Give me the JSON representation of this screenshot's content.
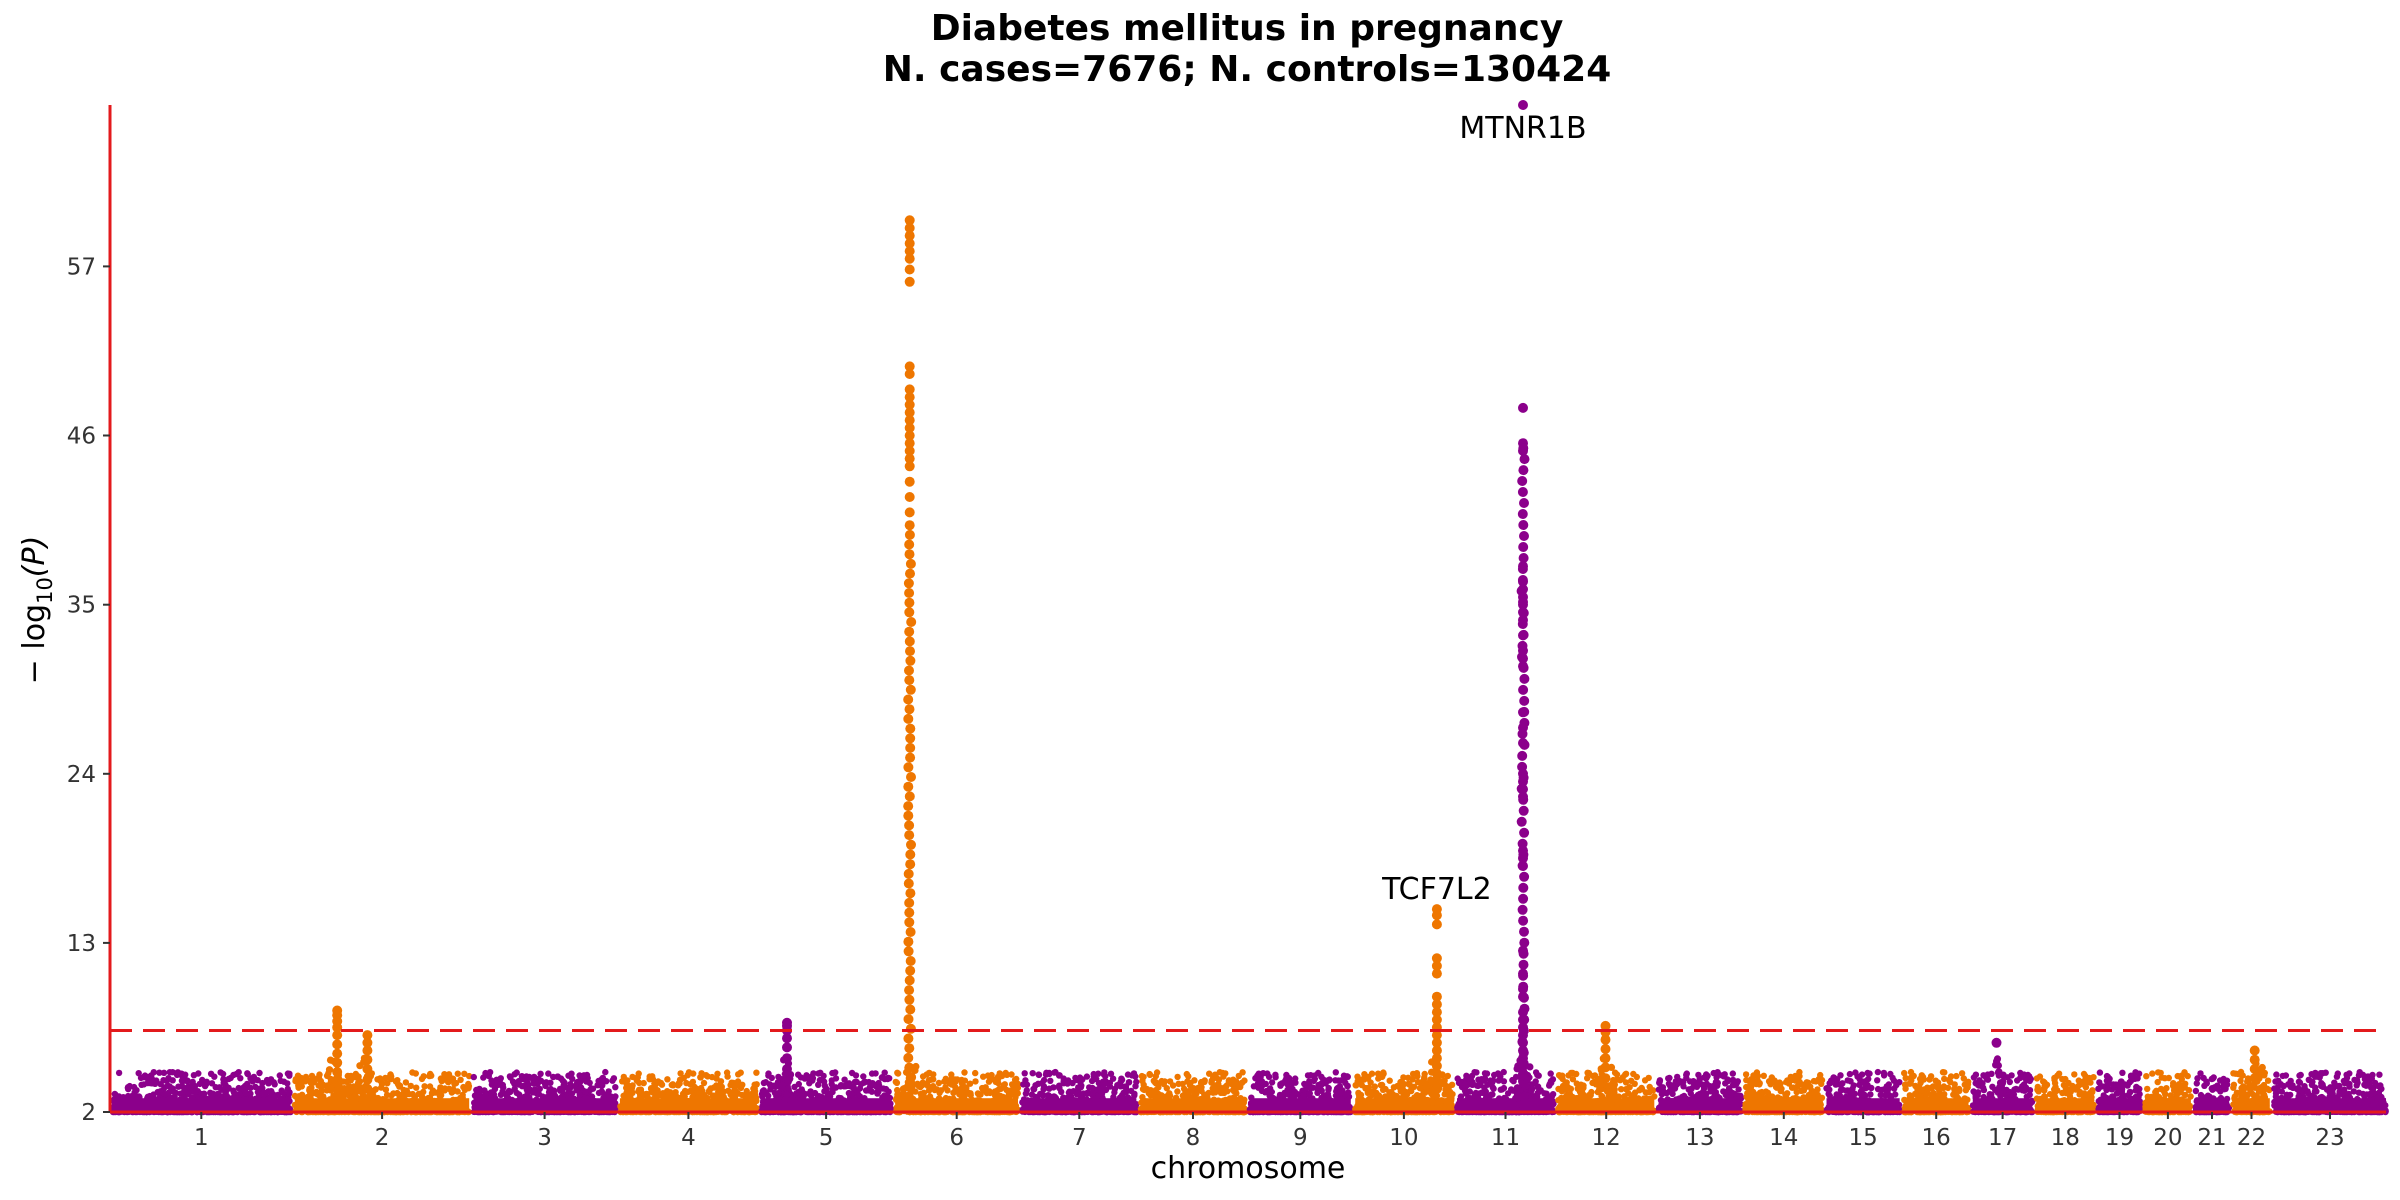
{
  "chart_data": {
    "type": "scatter",
    "title": "Diabetes mellitus in pregnancy",
    "subtitle": "N. cases=7676; N. controls=130424",
    "xlabel": "chromosome",
    "ylabel": "− log10(P)",
    "ylabel_main": "− log",
    "ylabel_sub": "10",
    "ylabel_var": "(P)",
    "ylim": [
      2,
      67.5
    ],
    "yticks": [
      2,
      13,
      24,
      35,
      46,
      57
    ],
    "ytick_labels": [
      "2",
      "13",
      "24",
      "35",
      "46",
      "57"
    ],
    "significance_threshold": 7.3,
    "grid": false,
    "legend": "none",
    "colors": {
      "odd": "#8B008B",
      "even": "#EE7600",
      "axis": "#e31a1c",
      "threshold": "#e31a1c"
    },
    "chromosomes": [
      {
        "label": "1",
        "length": 249
      },
      {
        "label": "2",
        "length": 243
      },
      {
        "label": "3",
        "length": 198
      },
      {
        "label": "4",
        "length": 191
      },
      {
        "label": "5",
        "length": 181
      },
      {
        "label": "6",
        "length": 171
      },
      {
        "label": "7",
        "length": 159
      },
      {
        "label": "8",
        "length": 146
      },
      {
        "label": "9",
        "length": 141
      },
      {
        "label": "10",
        "length": 136
      },
      {
        "label": "11",
        "length": 135
      },
      {
        "label": "12",
        "length": 134
      },
      {
        "label": "13",
        "length": 115
      },
      {
        "label": "14",
        "length": 107
      },
      {
        "label": "15",
        "length": 102
      },
      {
        "label": "16",
        "length": 90
      },
      {
        "label": "17",
        "length": 83
      },
      {
        "label": "18",
        "length": 80
      },
      {
        "label": "19",
        "length": 59
      },
      {
        "label": "20",
        "length": 64
      },
      {
        "label": "21",
        "length": 47
      },
      {
        "label": "22",
        "length": 51
      },
      {
        "label": "23",
        "length": 156
      }
    ],
    "peaks": [
      {
        "chromosome": "2",
        "position": 59,
        "ymax": 8.6,
        "points": [
          8.6,
          8.3,
          7.9,
          7.5,
          7.0,
          6.4,
          5.8,
          5.2,
          4.6,
          4.0,
          3.5
        ]
      },
      {
        "chromosome": "2",
        "position": 101,
        "ymax": 7.0,
        "points": [
          7.0,
          6.5,
          6.0,
          5.4,
          4.8,
          4.1,
          3.5
        ]
      },
      {
        "chromosome": "5",
        "position": 36,
        "ymax": 7.8,
        "points": [
          7.8,
          7.6,
          7.3,
          6.8,
          6.2,
          5.5,
          4.8,
          4.0,
          3.4
        ]
      },
      {
        "chromosome": "6",
        "position": 20,
        "ymax": 60.0,
        "points": [
          60.0,
          59.5,
          59.0,
          58.5,
          58.0,
          57.5,
          56.8,
          56.0,
          50.5,
          50.0,
          49.0,
          48.5,
          48.0,
          47.5,
          47.0,
          46.5,
          46.0,
          45.5,
          45.0,
          44.5,
          44.0,
          43.0,
          42.0,
          41.0
        ]
      },
      {
        "chromosome": "10",
        "position": 114,
        "ymax": 15.2,
        "points": [
          15.2,
          14.8,
          14.2,
          12.0,
          11.5,
          11.0,
          9.5,
          9.0,
          8.5,
          8.0,
          7.5,
          7.0,
          6.5,
          6.0,
          5.5,
          5.0,
          4.5,
          4.0,
          3.5
        ]
      },
      {
        "chromosome": "11",
        "position": 92,
        "ymax": 67.5,
        "points": [
          67.5,
          47.8,
          45.5,
          45.0,
          37.5,
          36.5,
          36.0,
          35.5,
          35.0,
          34.5,
          34.0,
          33.0,
          32.0,
          31.5,
          31.0,
          28.0,
          27.0,
          26.0,
          24.0,
          23.5,
          23.0,
          22.5,
          19.0,
          18.5,
          18.0,
          12.5,
          11.0,
          10.0,
          9.5,
          8.5,
          8.0,
          7.5,
          7.0,
          6.5,
          6.0,
          5.5,
          5.0,
          4.5,
          4.0
        ]
      },
      {
        "chromosome": "12",
        "position": 66,
        "ymax": 7.6,
        "points": [
          7.6,
          7.2,
          6.7,
          6.1,
          5.5,
          4.9,
          4.2,
          3.6
        ]
      },
      {
        "chromosome": "17",
        "position": 33,
        "ymax": 6.5,
        "points": [
          6.5
        ]
      },
      {
        "chromosome": "22",
        "position": 30,
        "ymax": 6.0,
        "points": [
          6.0,
          5.4,
          4.8,
          4.2
        ]
      }
    ],
    "annotations": [
      {
        "text": "MTNR1B",
        "chromosome": "11",
        "position": 92,
        "y": 66.0
      },
      {
        "text": "TCF7L2",
        "chromosome": "10",
        "position": 114,
        "y": 16.5
      }
    ]
  }
}
